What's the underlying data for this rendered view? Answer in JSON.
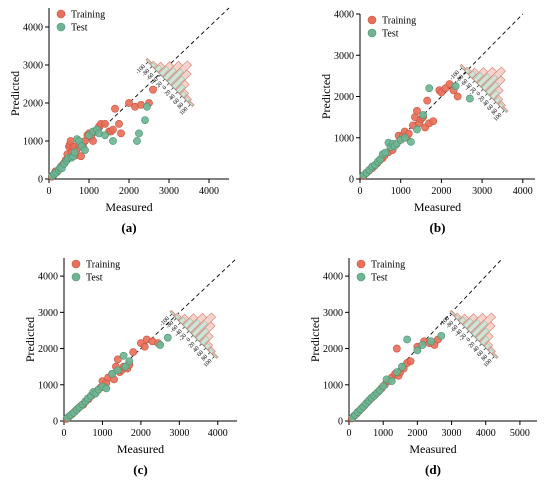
{
  "colors": {
    "training": "#e8705a",
    "training_edge": "#c95340",
    "test": "#6eb594",
    "test_edge": "#4d9474",
    "hist_train_fill": "#f6d4cd",
    "hist_train_edge": "#d97a6a",
    "hist_test_fill": "#cfe6da",
    "hist_test_edge": "#7fb79b",
    "axis": "#000000"
  },
  "hist_scale_labels": [
    "-100",
    "-80",
    "-60",
    "-40",
    "-20",
    "0",
    "20",
    "40",
    "60",
    "80",
    "100"
  ],
  "chart_data": [
    {
      "type": "scatter",
      "panel_label": "(a)",
      "xlabel": "Measured",
      "ylabel": "Predicted",
      "xlim": [
        0,
        4500
      ],
      "ylim": [
        0,
        4500
      ],
      "xticks": [
        0,
        1000,
        2000,
        3000,
        4000
      ],
      "yticks": [
        0,
        1000,
        2000,
        3000,
        4000
      ],
      "reference_line": "y = x (dashed)",
      "legend": [
        "Training",
        "Test"
      ],
      "series": [
        {
          "name": "Training",
          "points": [
            [
              70,
              60
            ],
            [
              120,
              110
            ],
            [
              160,
              200
            ],
            [
              200,
              180
            ],
            [
              260,
              260
            ],
            [
              300,
              330
            ],
            [
              350,
              380
            ],
            [
              380,
              420
            ],
            [
              420,
              500
            ],
            [
              460,
              650
            ],
            [
              500,
              850
            ],
            [
              520,
              900
            ],
            [
              540,
              1000
            ],
            [
              580,
              700
            ],
            [
              620,
              850
            ],
            [
              660,
              620
            ],
            [
              700,
              780
            ],
            [
              760,
              900
            ],
            [
              800,
              600
            ],
            [
              850,
              850
            ],
            [
              900,
              1000
            ],
            [
              960,
              1150
            ],
            [
              1000,
              1200
            ],
            [
              1050,
              1100
            ],
            [
              1100,
              1000
            ],
            [
              1150,
              1250
            ],
            [
              1200,
              1300
            ],
            [
              1250,
              1380
            ],
            [
              1300,
              1450
            ],
            [
              1400,
              1450
            ],
            [
              1500,
              1250
            ],
            [
              1550,
              1250
            ],
            [
              1600,
              1300
            ],
            [
              1650,
              1850
            ],
            [
              1750,
              1450
            ],
            [
              1800,
              1200
            ],
            [
              2000,
              2000
            ],
            [
              2150,
              1900
            ],
            [
              2300,
              1950
            ],
            [
              2500,
              2000
            ],
            [
              2600,
              2350
            ]
          ]
        },
        {
          "name": "Test",
          "points": [
            [
              80,
              80
            ],
            [
              130,
              130
            ],
            [
              180,
              170
            ],
            [
              240,
              240
            ],
            [
              280,
              300
            ],
            [
              320,
              280
            ],
            [
              380,
              400
            ],
            [
              440,
              480
            ],
            [
              480,
              550
            ],
            [
              560,
              560
            ],
            [
              600,
              600
            ],
            [
              640,
              700
            ],
            [
              700,
              1050
            ],
            [
              750,
              1000
            ],
            [
              820,
              860
            ],
            [
              900,
              760
            ],
            [
              1000,
              1150
            ],
            [
              1100,
              1250
            ],
            [
              1200,
              1300
            ],
            [
              1250,
              1200
            ],
            [
              1400,
              1150
            ],
            [
              1600,
              1000
            ],
            [
              2200,
              1000
            ],
            [
              2250,
              1200
            ],
            [
              2400,
              1550
            ],
            [
              2450,
              1900
            ]
          ]
        }
      ]
    },
    {
      "type": "scatter",
      "panel_label": "(b)",
      "xlabel": "Measured",
      "ylabel": "Predicted",
      "xlim": [
        0,
        4300
      ],
      "ylim": [
        0,
        4000
      ],
      "xticks": [
        0,
        1000,
        2000,
        3000,
        4000
      ],
      "yticks": [
        0,
        1000,
        2000,
        3000,
        4000
      ],
      "reference_line": "y = x (dashed)",
      "legend": [
        "Training",
        "Test"
      ],
      "series": [
        {
          "name": "Training",
          "points": [
            [
              80,
              70
            ],
            [
              150,
              140
            ],
            [
              220,
              200
            ],
            [
              300,
              260
            ],
            [
              360,
              320
            ],
            [
              420,
              380
            ],
            [
              480,
              450
            ],
            [
              550,
              500
            ],
            [
              600,
              560
            ],
            [
              700,
              650
            ],
            [
              800,
              700
            ],
            [
              900,
              850
            ],
            [
              950,
              1050
            ],
            [
              1000,
              950
            ],
            [
              1050,
              1050
            ],
            [
              1100,
              1150
            ],
            [
              1150,
              1000
            ],
            [
              1200,
              1100
            ],
            [
              1300,
              1300
            ],
            [
              1350,
              1500
            ],
            [
              1400,
              1650
            ],
            [
              1450,
              1350
            ],
            [
              1500,
              1450
            ],
            [
              1550,
              1500
            ],
            [
              1600,
              1250
            ],
            [
              1650,
              1900
            ],
            [
              1700,
              1350
            ],
            [
              1800,
              1400
            ],
            [
              1950,
              2150
            ],
            [
              2000,
              2100
            ],
            [
              2100,
              2200
            ],
            [
              2200,
              2300
            ],
            [
              2300,
              2150
            ],
            [
              2400,
              2000
            ]
          ]
        },
        {
          "name": "Test",
          "points": [
            [
              90,
              90
            ],
            [
              160,
              150
            ],
            [
              230,
              220
            ],
            [
              300,
              300
            ],
            [
              370,
              340
            ],
            [
              440,
              420
            ],
            [
              500,
              480
            ],
            [
              560,
              600
            ],
            [
              620,
              640
            ],
            [
              700,
              880
            ],
            [
              750,
              780
            ],
            [
              800,
              850
            ],
            [
              850,
              800
            ],
            [
              900,
              860
            ],
            [
              1000,
              950
            ],
            [
              1100,
              1000
            ],
            [
              1250,
              900
            ],
            [
              1400,
              1200
            ],
            [
              1550,
              1550
            ],
            [
              1700,
              2200
            ],
            [
              2350,
              2250
            ],
            [
              2700,
              1950
            ]
          ]
        }
      ]
    },
    {
      "type": "scatter",
      "panel_label": "(c)",
      "xlabel": "Measured",
      "ylabel": "Predicted",
      "xlim": [
        0,
        4500
      ],
      "ylim": [
        0,
        4500
      ],
      "xticks": [
        0,
        1000,
        2000,
        3000,
        4000
      ],
      "yticks": [
        0,
        1000,
        2000,
        3000,
        4000
      ],
      "reference_line": "y = x (dashed)",
      "legend": [
        "Training",
        "Test"
      ],
      "series": [
        {
          "name": "Training",
          "points": [
            [
              70,
              60
            ],
            [
              140,
              130
            ],
            [
              210,
              190
            ],
            [
              280,
              260
            ],
            [
              350,
              330
            ],
            [
              420,
              400
            ],
            [
              500,
              450
            ],
            [
              560,
              540
            ],
            [
              640,
              600
            ],
            [
              720,
              700
            ],
            [
              800,
              760
            ],
            [
              880,
              850
            ],
            [
              950,
              920
            ],
            [
              1000,
              1100
            ],
            [
              1050,
              950
            ],
            [
              1100,
              1050
            ],
            [
              1150,
              1200
            ],
            [
              1250,
              1300
            ],
            [
              1300,
              1150
            ],
            [
              1350,
              1500
            ],
            [
              1400,
              1700
            ],
            [
              1450,
              1350
            ],
            [
              1500,
              1400
            ],
            [
              1550,
              1500
            ],
            [
              1650,
              1450
            ],
            [
              1700,
              1550
            ],
            [
              1800,
              1900
            ],
            [
              2000,
              2150
            ],
            [
              2100,
              2050
            ],
            [
              2150,
              2250
            ],
            [
              2300,
              2200
            ],
            [
              2450,
              2150
            ]
          ]
        },
        {
          "name": "Test",
          "points": [
            [
              90,
              90
            ],
            [
              170,
              160
            ],
            [
              250,
              230
            ],
            [
              330,
              310
            ],
            [
              400,
              380
            ],
            [
              480,
              460
            ],
            [
              560,
              540
            ],
            [
              620,
              620
            ],
            [
              700,
              700
            ],
            [
              760,
              800
            ],
            [
              820,
              760
            ],
            [
              900,
              870
            ],
            [
              1000,
              950
            ],
            [
              1100,
              900
            ],
            [
              1250,
              1300
            ],
            [
              1400,
              1400
            ],
            [
              1550,
              1800
            ],
            [
              1600,
              1500
            ],
            [
              1700,
              1650
            ],
            [
              2500,
              2100
            ],
            [
              2700,
              2300
            ]
          ]
        }
      ]
    },
    {
      "type": "scatter",
      "panel_label": "(d)",
      "xlabel": "Measured",
      "ylabel": "Predicted",
      "xlim": [
        0,
        5500
      ],
      "ylim": [
        0,
        4500
      ],
      "xticks": [
        0,
        1000,
        2000,
        3000,
        4000,
        5000
      ],
      "yticks": [
        0,
        1000,
        2000,
        3000,
        4000
      ],
      "reference_line": "y = x (dashed)",
      "legend": [
        "Training",
        "Test"
      ],
      "series": [
        {
          "name": "Training",
          "points": [
            [
              80,
              70
            ],
            [
              150,
              140
            ],
            [
              230,
              210
            ],
            [
              300,
              280
            ],
            [
              380,
              360
            ],
            [
              450,
              420
            ],
            [
              520,
              500
            ],
            [
              600,
              580
            ],
            [
              680,
              650
            ],
            [
              760,
              720
            ],
            [
              850,
              800
            ],
            [
              950,
              900
            ],
            [
              1050,
              1000
            ],
            [
              1150,
              1100
            ],
            [
              1250,
              1200
            ],
            [
              1350,
              1300
            ],
            [
              1400,
              2000
            ],
            [
              1450,
              1250
            ],
            [
              1500,
              1350
            ],
            [
              1600,
              1450
            ],
            [
              1700,
              1600
            ],
            [
              1800,
              1650
            ],
            [
              2000,
              2050
            ],
            [
              2200,
              2200
            ],
            [
              2350,
              2150
            ],
            [
              2500,
              2100
            ],
            [
              2600,
              2250
            ]
          ]
        },
        {
          "name": "Test",
          "points": [
            [
              100,
              90
            ],
            [
              180,
              170
            ],
            [
              260,
              250
            ],
            [
              340,
              320
            ],
            [
              420,
              400
            ],
            [
              500,
              480
            ],
            [
              580,
              560
            ],
            [
              660,
              640
            ],
            [
              740,
              700
            ],
            [
              820,
              780
            ],
            [
              900,
              850
            ],
            [
              1000,
              960
            ],
            [
              1100,
              1150
            ],
            [
              1250,
              1100
            ],
            [
              1400,
              1350
            ],
            [
              1550,
              1500
            ],
            [
              1700,
              2250
            ],
            [
              2000,
              1950
            ],
            [
              2150,
              2100
            ],
            [
              2400,
              2200
            ],
            [
              2700,
              2350
            ]
          ]
        }
      ]
    }
  ]
}
